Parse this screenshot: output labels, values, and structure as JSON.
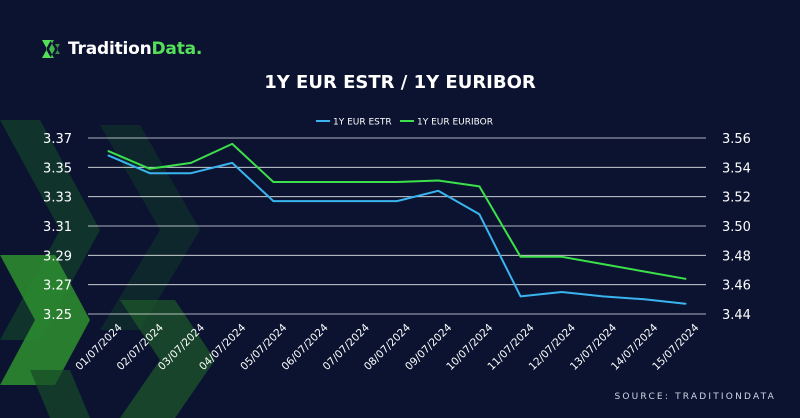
{
  "header": {
    "logo_main": "Tradition",
    "logo_accent": "Data.",
    "logo_icon": "tradition-data-logo-icon"
  },
  "footer": {
    "source": "SOURCE: TRADITIONDATA"
  },
  "colors": {
    "background": "#0b1330",
    "estr": "#3ab4ee",
    "euribor": "#3ce04a",
    "grid": "#ffffff",
    "brand_green": "#55e05a"
  },
  "chart_data": {
    "type": "line",
    "title": "1Y EUR ESTR / 1Y EURIBOR",
    "categories": [
      "01/07/2024",
      "02/07/2024",
      "03/07/2024",
      "04/07/2024",
      "05/07/2024",
      "06/07/2024",
      "07/07/2024",
      "08/07/2024",
      "09/07/2024",
      "10/07/2024",
      "11/07/2024",
      "12/07/2024",
      "13/07/2024",
      "14/07/2024",
      "15/07/2024"
    ],
    "left_axis": {
      "ticks": [
        "3.37",
        "3.35",
        "3.33",
        "3.31",
        "3.29",
        "3.27",
        "3.25"
      ],
      "ylim": [
        3.25,
        3.37
      ]
    },
    "right_axis": {
      "ticks": [
        "3.56",
        "3.54",
        "3.52",
        "3.50",
        "3.48",
        "3.46",
        "3.44"
      ],
      "ylim": [
        3.44,
        3.56
      ]
    },
    "series": [
      {
        "name": "1Y EUR ESTR",
        "axis": "left",
        "values": [
          3.358,
          3.346,
          3.346,
          3.353,
          3.327,
          3.327,
          3.327,
          3.327,
          3.334,
          3.318,
          3.262,
          3.265,
          3.262,
          3.26,
          3.257
        ]
      },
      {
        "name": "1Y EUR EURIBOR",
        "axis": "right",
        "values": [
          3.551,
          3.539,
          3.543,
          3.556,
          3.53,
          3.53,
          3.53,
          3.53,
          3.531,
          3.527,
          3.479,
          3.479,
          3.474,
          3.469,
          3.464
        ]
      }
    ],
    "grid": true,
    "legend": "top-center"
  }
}
